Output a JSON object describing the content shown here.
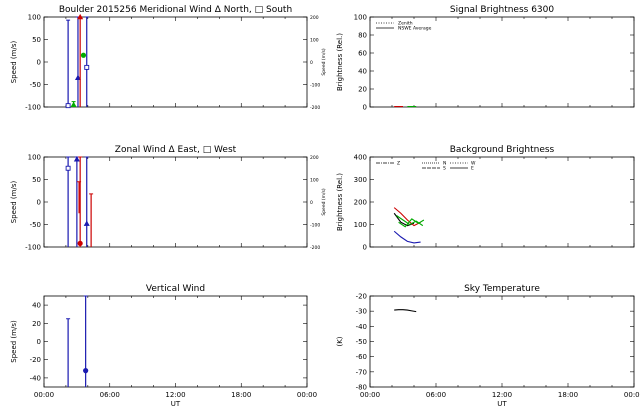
{
  "chart_data": [
    {
      "type": "scatter",
      "id": "meridional",
      "title": "Boulder   2015256     Meridional Wind   Δ North, □ South",
      "ylabel": "Speed (m/s)",
      "ylabel_right": "Speed (m/s)",
      "xlim": [
        0,
        24
      ],
      "ylim": [
        -100,
        100
      ],
      "yticks": [
        -100,
        -50,
        0,
        50,
        100
      ],
      "ylim_right": [
        -200,
        200
      ],
      "yticks_right": [
        -200,
        -100,
        0,
        100,
        200
      ],
      "grid": false,
      "series": [
        {
          "color": "#1a1ab0",
          "points": [
            {
              "x": 2.2,
              "y": -97,
              "lo": -100,
              "hi": 93,
              "marker": "square"
            },
            {
              "x": 3.1,
              "y": -35,
              "lo": -100,
              "hi": 100,
              "marker": "triangle"
            },
            {
              "x": 3.9,
              "y": -12,
              "lo": -100,
              "hi": 100,
              "marker": "square"
            }
          ]
        },
        {
          "color": "#cc0000",
          "points": [
            {
              "x": 3.3,
              "y": 100,
              "lo": -100,
              "hi": 100,
              "marker": "triangle"
            }
          ]
        },
        {
          "color": "#00aa00",
          "points": [
            {
              "x": 2.7,
              "y": -95,
              "lo": -100,
              "hi": -88,
              "marker": "triangle"
            },
            {
              "x": 3.6,
              "y": 15,
              "lo": 15,
              "hi": 15,
              "marker": "dot"
            }
          ]
        }
      ]
    },
    {
      "type": "line",
      "id": "signal",
      "title": "Signal Brightness        6300",
      "ylabel": "Brightness (Rel.)",
      "xlim": [
        0,
        24
      ],
      "ylim": [
        0,
        100
      ],
      "yticks": [
        0,
        20,
        40,
        60,
        80,
        100
      ],
      "legend": [
        "Zenith",
        "NSWE Average"
      ],
      "legend_position": "top-left",
      "series": [
        {
          "name": "Zenith",
          "color": "#cc0000",
          "x": [
            2.2,
            2.6,
            3.0
          ],
          "y": [
            0.5,
            0.5,
            0.5
          ]
        },
        {
          "name": "NSWE Average",
          "color": "#00aa00",
          "x": [
            3.4,
            3.8,
            4.2
          ],
          "y": [
            0.5,
            0.5,
            0.5
          ]
        }
      ]
    },
    {
      "type": "scatter",
      "id": "zonal",
      "title": "Zonal Wind      Δ East, □ West",
      "ylabel": "Speed (m/s)",
      "ylabel_right": "Speed (m/s)",
      "xlim": [
        0,
        24
      ],
      "ylim": [
        -100,
        100
      ],
      "yticks": [
        -100,
        -50,
        0,
        50,
        100
      ],
      "ylim_right": [
        -200,
        200
      ],
      "yticks_right": [
        -200,
        -100,
        0,
        100,
        200
      ],
      "series": [
        {
          "color": "#1a1ab0",
          "points": [
            {
              "x": 2.2,
              "y": 75,
              "lo": -100,
              "hi": 100,
              "marker": "square"
            },
            {
              "x": 3.0,
              "y": 95,
              "lo": -100,
              "hi": 100,
              "marker": "triangle"
            },
            {
              "x": 3.9,
              "y": -48,
              "lo": -100,
              "hi": 100,
              "marker": "triangle"
            }
          ]
        },
        {
          "color": "#cc0000",
          "points": [
            {
              "x": 3.3,
              "y": -92,
              "lo": -100,
              "hi": 100,
              "marker": "dot"
            },
            {
              "x": 3.2,
              "y": 15,
              "lo": -25,
              "hi": 45,
              "marker": "none"
            },
            {
              "x": 4.3,
              "y": -52,
              "lo": -100,
              "hi": 18,
              "marker": "none"
            }
          ]
        }
      ]
    },
    {
      "type": "line",
      "id": "background",
      "title": "Background Brightness",
      "ylabel": "Brightness (Rel.)",
      "xlim": [
        0,
        24
      ],
      "ylim": [
        0,
        400
      ],
      "yticks": [
        0,
        100,
        200,
        300,
        400
      ],
      "legend": [
        "Z",
        "N",
        "S",
        "W",
        "E"
      ],
      "legend_position": "top-left",
      "series": [
        {
          "name": "Z",
          "color": "#000000",
          "x": [
            2.2,
            2.8,
            3.4,
            4.0
          ],
          "y": [
            150,
            110,
            95,
            105
          ]
        },
        {
          "name": "N",
          "color": "#1a1ab0",
          "x": [
            2.2,
            2.8,
            3.4,
            4.0,
            4.6
          ],
          "y": [
            70,
            45,
            25,
            18,
            22
          ]
        },
        {
          "name": "S",
          "color": "#cc0000",
          "x": [
            2.2,
            2.8,
            3.4,
            4.0,
            4.6
          ],
          "y": [
            175,
            150,
            120,
            95,
            110
          ]
        },
        {
          "name": "W",
          "color": "#00aa00",
          "x": [
            2.4,
            3.0,
            3.6,
            4.2,
            4.8
          ],
          "y": [
            140,
            120,
            100,
            115,
            95
          ]
        },
        {
          "name": "E",
          "color": "#00aa00",
          "x": [
            2.6,
            3.2,
            3.8,
            4.4,
            4.9
          ],
          "y": [
            110,
            90,
            125,
            105,
            120
          ]
        }
      ]
    },
    {
      "type": "scatter",
      "id": "vertical",
      "title": "Vertical Wind",
      "ylabel": "Speed (m/s)",
      "xlabel": "UT",
      "xlim": [
        0,
        24
      ],
      "xticks": [
        "00:00",
        "06:00",
        "12:00",
        "18:00",
        "00:00"
      ],
      "ylim": [
        -50,
        50
      ],
      "yticks": [
        -40,
        -20,
        0,
        20,
        40
      ],
      "series": [
        {
          "color": "#1a1ab0",
          "points": [
            {
              "x": 2.2,
              "y": null,
              "lo": -50,
              "hi": 25,
              "marker": "none"
            },
            {
              "x": 3.8,
              "y": -32,
              "lo": -50,
              "hi": 50,
              "marker": "dot"
            }
          ]
        }
      ]
    },
    {
      "type": "line",
      "id": "skytemp",
      "title": "Sky Temperature",
      "ylabel": "(K)",
      "xlabel": "UT",
      "xlim": [
        0,
        24
      ],
      "xticks": [
        "00:00",
        "06:00",
        "12:00",
        "18:00",
        "00:00"
      ],
      "ylim": [
        -80,
        -20
      ],
      "yticks": [
        -80,
        -70,
        -60,
        -50,
        -40,
        -30,
        -20
      ],
      "series": [
        {
          "color": "#000000",
          "x": [
            2.2,
            2.6,
            3.0,
            3.4,
            3.8,
            4.2
          ],
          "y": [
            -29.3,
            -29.0,
            -29.0,
            -29.3,
            -29.8,
            -30.3
          ]
        }
      ]
    }
  ]
}
